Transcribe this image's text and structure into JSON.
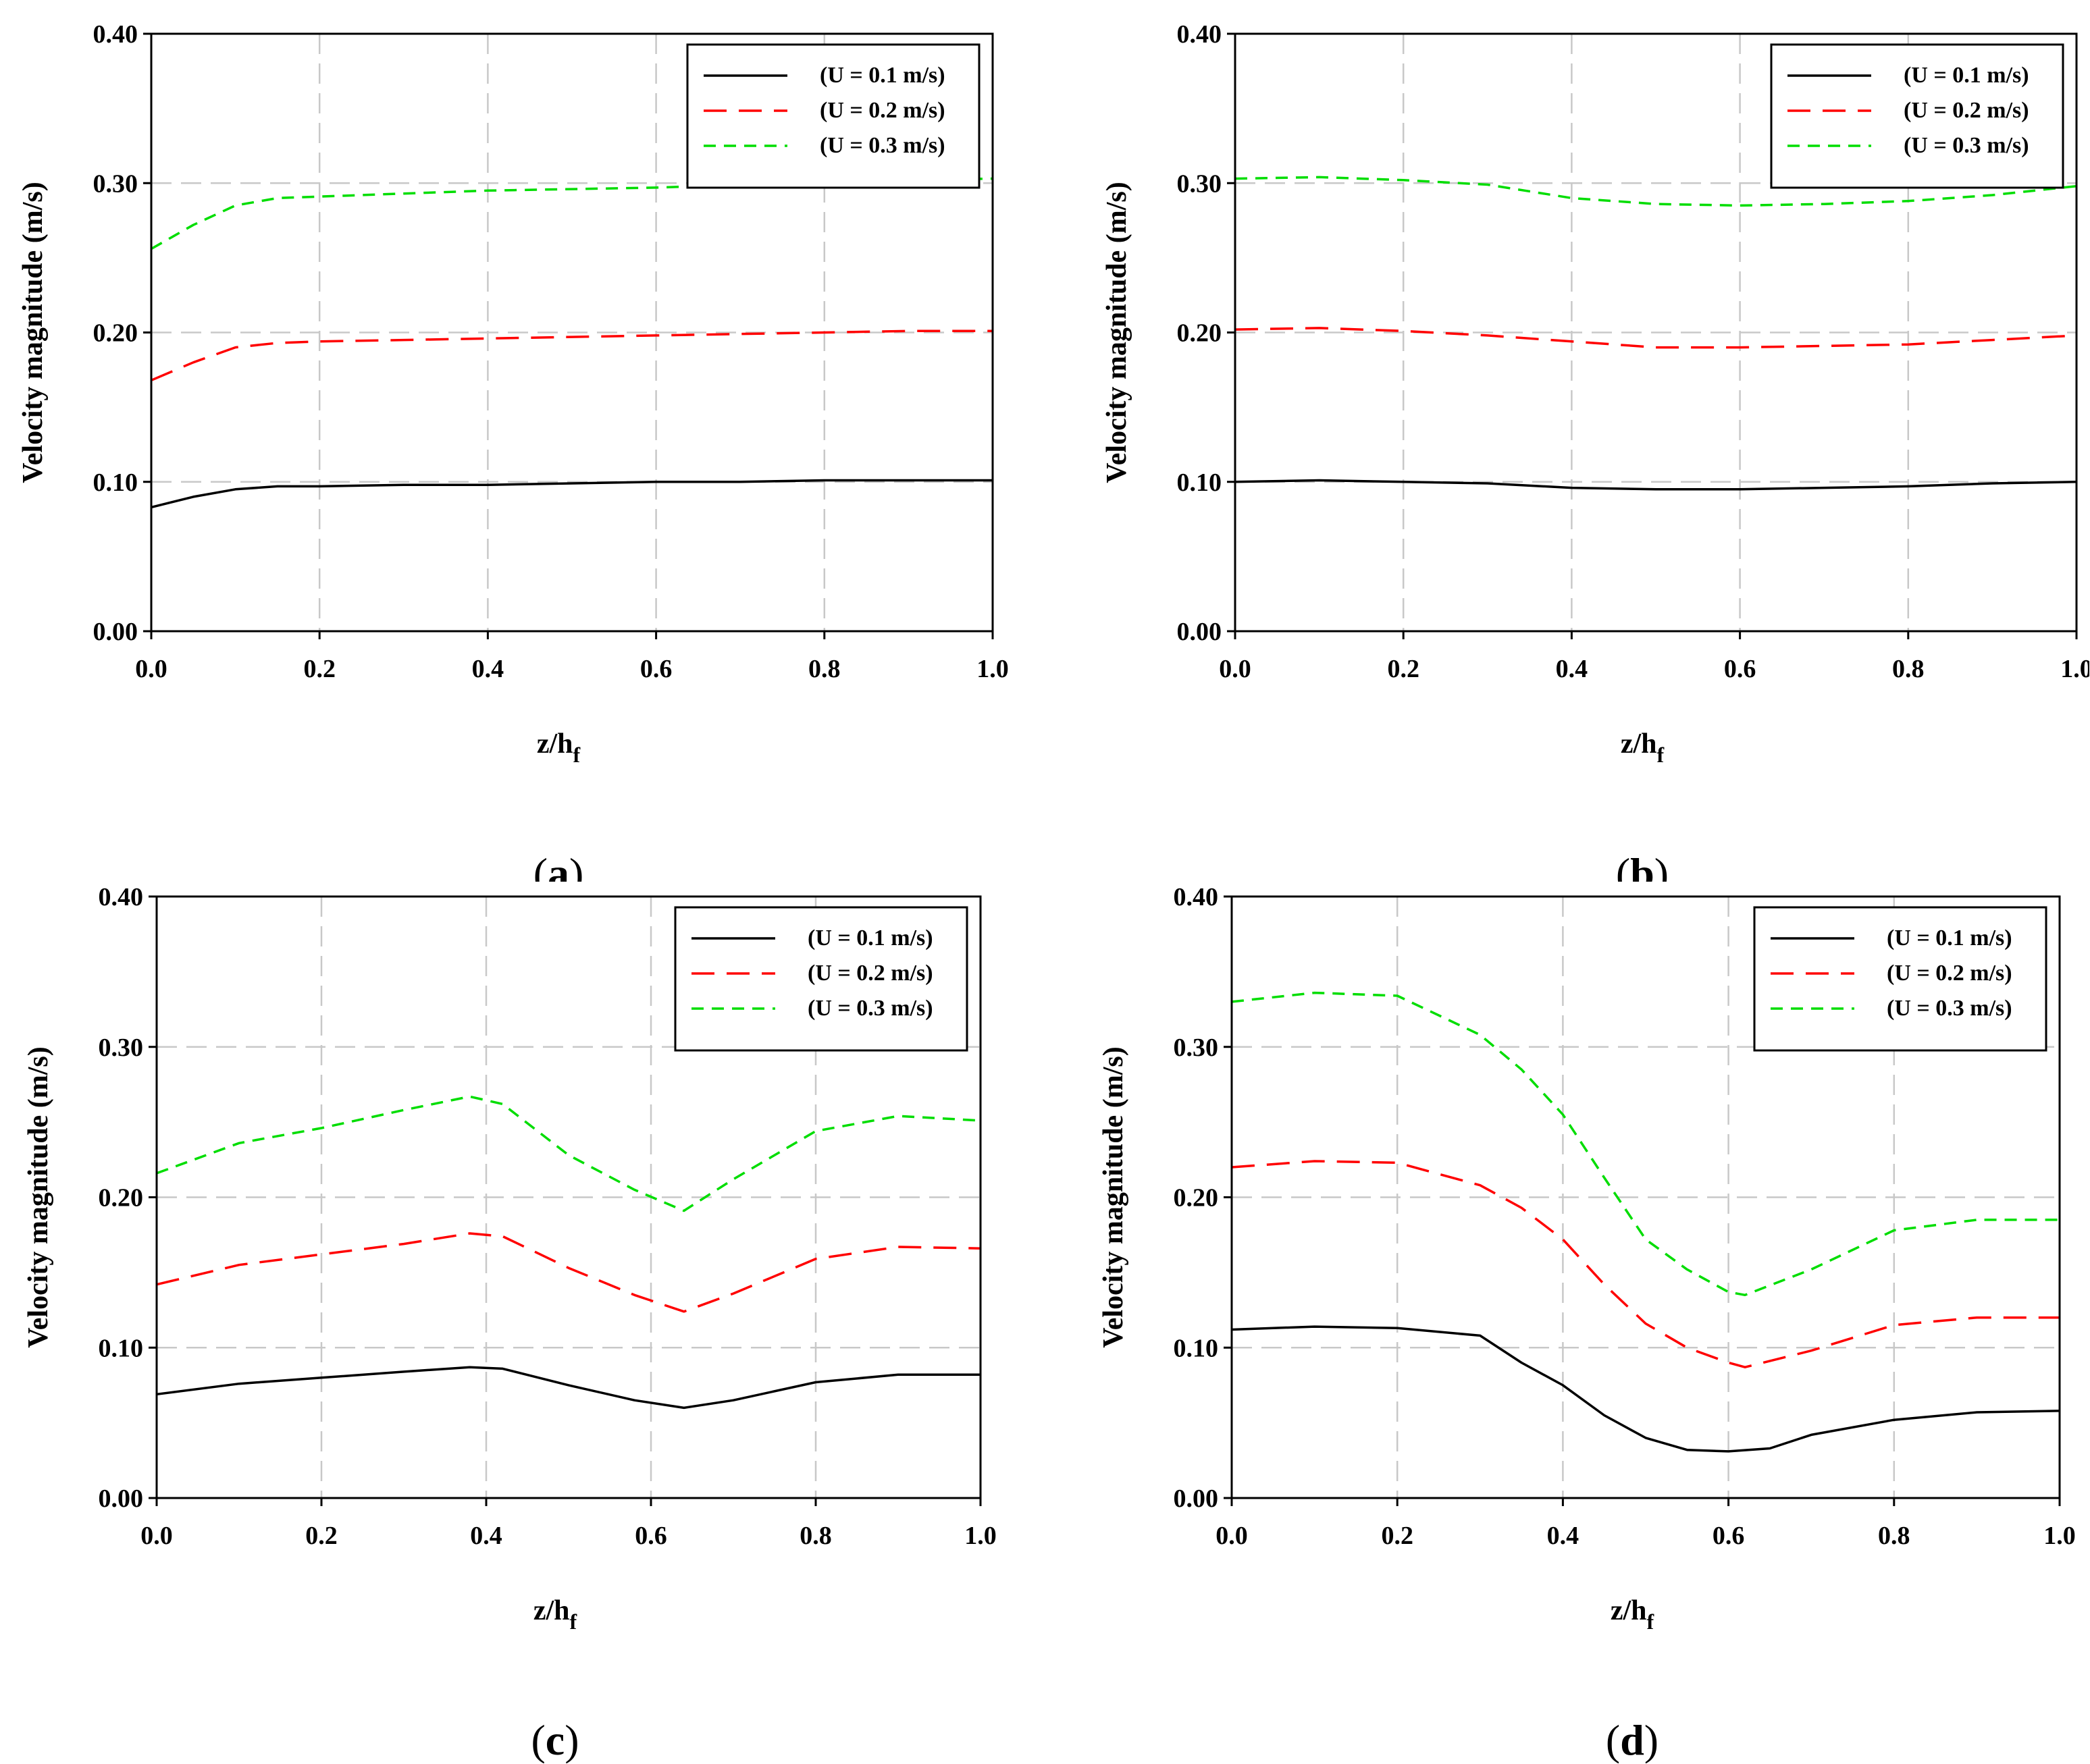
{
  "figure": {
    "panel_labels": [
      "a",
      "b",
      "c",
      "d"
    ]
  },
  "chart_data": [
    {
      "id": "a",
      "type": "line",
      "xlabel": "z/h",
      "xlabel_sub": "f",
      "ylabel": "Velocity magnitude (m/s)",
      "xlim": [
        0,
        1
      ],
      "ylim": [
        0,
        0.4
      ],
      "xticks": [
        "0.0",
        "0.2",
        "0.4",
        "0.6",
        "0.8",
        "1.0"
      ],
      "yticks": [
        "0.00",
        "0.10",
        "0.20",
        "0.30",
        "0.40"
      ],
      "grid": true,
      "legend_position": "top-right",
      "series": [
        {
          "name": "(U = 0.1 m/s)",
          "color": "#000000",
          "dash": "solid",
          "x": [
            0,
            0.05,
            0.1,
            0.15,
            0.2,
            0.3,
            0.4,
            0.5,
            0.6,
            0.7,
            0.8,
            0.9,
            1.0
          ],
          "y": [
            0.083,
            0.09,
            0.095,
            0.097,
            0.097,
            0.098,
            0.098,
            0.099,
            0.1,
            0.1,
            0.101,
            0.101,
            0.101
          ]
        },
        {
          "name": "(U = 0.2 m/s)",
          "color": "#ff0000",
          "dash": "long",
          "x": [
            0,
            0.05,
            0.1,
            0.15,
            0.2,
            0.3,
            0.4,
            0.5,
            0.6,
            0.7,
            0.8,
            0.9,
            1.0
          ],
          "y": [
            0.168,
            0.18,
            0.19,
            0.193,
            0.194,
            0.195,
            0.196,
            0.197,
            0.198,
            0.199,
            0.2,
            0.201,
            0.201
          ]
        },
        {
          "name": "(U = 0.3 m/s)",
          "color": "#00dd00",
          "dash": "short",
          "x": [
            0,
            0.05,
            0.1,
            0.15,
            0.2,
            0.3,
            0.4,
            0.5,
            0.6,
            0.7,
            0.8,
            0.9,
            1.0
          ],
          "y": [
            0.256,
            0.272,
            0.285,
            0.29,
            0.291,
            0.293,
            0.295,
            0.296,
            0.297,
            0.299,
            0.301,
            0.302,
            0.303
          ]
        }
      ]
    },
    {
      "id": "b",
      "type": "line",
      "xlabel": "z/h",
      "xlabel_sub": "f",
      "ylabel": "Velocity magnitude (m/s)",
      "xlim": [
        0,
        1
      ],
      "ylim": [
        0,
        0.4
      ],
      "xticks": [
        "0.0",
        "0.2",
        "0.4",
        "0.6",
        "0.8",
        "1.0"
      ],
      "yticks": [
        "0.00",
        "0.10",
        "0.20",
        "0.30",
        "0.40"
      ],
      "grid": true,
      "legend_position": "top-right",
      "series": [
        {
          "name": "(U = 0.1 m/s)",
          "color": "#000000",
          "dash": "solid",
          "x": [
            0,
            0.1,
            0.2,
            0.3,
            0.4,
            0.5,
            0.6,
            0.7,
            0.8,
            0.9,
            1.0
          ],
          "y": [
            0.1,
            0.101,
            0.1,
            0.099,
            0.096,
            0.095,
            0.095,
            0.096,
            0.097,
            0.099,
            0.1
          ]
        },
        {
          "name": "(U = 0.2 m/s)",
          "color": "#ff0000",
          "dash": "long",
          "x": [
            0,
            0.1,
            0.2,
            0.3,
            0.4,
            0.5,
            0.6,
            0.7,
            0.8,
            0.9,
            1.0
          ],
          "y": [
            0.202,
            0.203,
            0.201,
            0.198,
            0.194,
            0.19,
            0.19,
            0.191,
            0.192,
            0.195,
            0.198
          ]
        },
        {
          "name": "(U = 0.3 m/s)",
          "color": "#00dd00",
          "dash": "short",
          "x": [
            0,
            0.1,
            0.2,
            0.3,
            0.4,
            0.5,
            0.6,
            0.7,
            0.8,
            0.9,
            1.0
          ],
          "y": [
            0.303,
            0.304,
            0.302,
            0.299,
            0.29,
            0.286,
            0.285,
            0.286,
            0.288,
            0.292,
            0.298
          ]
        }
      ]
    },
    {
      "id": "c",
      "type": "line",
      "xlabel": "z/h",
      "xlabel_sub": "f",
      "ylabel": "Velocity magnitude (m/s)",
      "xlim": [
        0,
        1
      ],
      "ylim": [
        0,
        0.4
      ],
      "xticks": [
        "0.0",
        "0.2",
        "0.4",
        "0.6",
        "0.8",
        "1.0"
      ],
      "yticks": [
        "0.00",
        "0.10",
        "0.20",
        "0.30",
        "0.40"
      ],
      "grid": true,
      "legend_position": "top-right",
      "series": [
        {
          "name": "(U = 0.1 m/s)",
          "color": "#000000",
          "dash": "solid",
          "x": [
            0,
            0.1,
            0.2,
            0.3,
            0.38,
            0.42,
            0.5,
            0.58,
            0.64,
            0.7,
            0.8,
            0.9,
            1.0
          ],
          "y": [
            0.069,
            0.076,
            0.08,
            0.084,
            0.087,
            0.086,
            0.075,
            0.065,
            0.06,
            0.065,
            0.077,
            0.082,
            0.082
          ]
        },
        {
          "name": "(U = 0.2 m/s)",
          "color": "#ff0000",
          "dash": "long",
          "x": [
            0,
            0.1,
            0.2,
            0.3,
            0.38,
            0.42,
            0.5,
            0.58,
            0.64,
            0.7,
            0.8,
            0.9,
            1.0
          ],
          "y": [
            0.142,
            0.155,
            0.162,
            0.169,
            0.176,
            0.174,
            0.153,
            0.135,
            0.124,
            0.136,
            0.159,
            0.167,
            0.166
          ]
        },
        {
          "name": "(U = 0.3 m/s)",
          "color": "#00dd00",
          "dash": "short",
          "x": [
            0,
            0.1,
            0.2,
            0.3,
            0.38,
            0.42,
            0.5,
            0.58,
            0.64,
            0.7,
            0.8,
            0.9,
            1.0
          ],
          "y": [
            0.216,
            0.236,
            0.246,
            0.258,
            0.267,
            0.262,
            0.228,
            0.205,
            0.191,
            0.212,
            0.244,
            0.254,
            0.251
          ]
        }
      ]
    },
    {
      "id": "d",
      "type": "line",
      "xlabel": "z/h",
      "xlabel_sub": "f",
      "ylabel": "Velocity magnitude (m/s)",
      "xlim": [
        0,
        1
      ],
      "ylim": [
        0,
        0.4
      ],
      "xticks": [
        "0.0",
        "0.2",
        "0.4",
        "0.6",
        "0.8",
        "1.0"
      ],
      "yticks": [
        "0.00",
        "0.10",
        "0.20",
        "0.30",
        "0.40"
      ],
      "grid": true,
      "legend_position": "top-right",
      "series": [
        {
          "name": "(U = 0.1 m/s)",
          "color": "#000000",
          "dash": "solid",
          "x": [
            0,
            0.1,
            0.2,
            0.3,
            0.35,
            0.4,
            0.45,
            0.5,
            0.55,
            0.6,
            0.65,
            0.7,
            0.8,
            0.9,
            1.0
          ],
          "y": [
            0.112,
            0.114,
            0.113,
            0.108,
            0.09,
            0.075,
            0.055,
            0.04,
            0.032,
            0.031,
            0.033,
            0.042,
            0.052,
            0.057,
            0.058
          ]
        },
        {
          "name": "(U = 0.2 m/s)",
          "color": "#ff0000",
          "dash": "long",
          "x": [
            0,
            0.1,
            0.2,
            0.3,
            0.35,
            0.4,
            0.45,
            0.5,
            0.55,
            0.6,
            0.62,
            0.7,
            0.8,
            0.9,
            1.0
          ],
          "y": [
            0.22,
            0.224,
            0.223,
            0.208,
            0.193,
            0.172,
            0.142,
            0.116,
            0.1,
            0.09,
            0.087,
            0.098,
            0.115,
            0.12,
            0.12
          ]
        },
        {
          "name": "(U = 0.3 m/s)",
          "color": "#00dd00",
          "dash": "short",
          "x": [
            0,
            0.1,
            0.2,
            0.3,
            0.35,
            0.4,
            0.45,
            0.5,
            0.55,
            0.6,
            0.62,
            0.7,
            0.8,
            0.9,
            1.0
          ],
          "y": [
            0.33,
            0.336,
            0.334,
            0.308,
            0.285,
            0.255,
            0.213,
            0.172,
            0.152,
            0.137,
            0.135,
            0.152,
            0.178,
            0.185,
            0.185
          ]
        }
      ]
    }
  ]
}
